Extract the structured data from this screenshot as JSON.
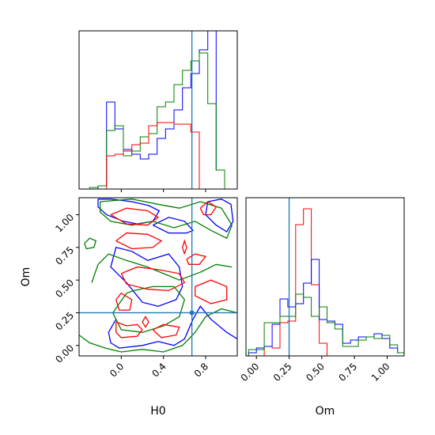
{
  "chart_data": [
    {
      "panel": "H0 marginal",
      "type": "histogram",
      "xlabel": "",
      "ylabel": "",
      "xlim": [
        -0.4,
        1.1
      ],
      "ylim": [
        0,
        1
      ],
      "y_ticks_shown": false,
      "truth_line": {
        "value": 0.67,
        "color": "#1f77b4"
      },
      "bin_edges": [
        -0.3,
        -0.22,
        -0.14,
        -0.06,
        0.02,
        0.1,
        0.18,
        0.26,
        0.34,
        0.42,
        0.5,
        0.58,
        0.66,
        0.74,
        0.82,
        0.9,
        0.98,
        1.06
      ],
      "series": [
        {
          "name": "blue",
          "color": "#0000ff",
          "counts": [
            0.0,
            0.02,
            0.55,
            0.38,
            0.25,
            0.22,
            0.19,
            0.22,
            0.32,
            0.38,
            0.5,
            0.64,
            0.73,
            0.88,
            1.0,
            0.12,
            0.0
          ]
        },
        {
          "name": "green",
          "color": "#008000",
          "counts": [
            0.01,
            0.02,
            0.37,
            0.4,
            0.21,
            0.24,
            0.33,
            0.35,
            0.52,
            0.55,
            0.66,
            0.75,
            0.81,
            0.86,
            0.54,
            0.12,
            0.0
          ]
        },
        {
          "name": "red",
          "color": "#ff0000",
          "counts": [
            0.0,
            0.0,
            0.21,
            0.22,
            0.24,
            0.28,
            0.29,
            0.4,
            0.42,
            0.42,
            0.41,
            0.41,
            0.36,
            0.0,
            0.0,
            0.0,
            0.0
          ]
        }
      ]
    },
    {
      "panel": "H0 vs Om joint",
      "type": "contour",
      "xlabel": "H0",
      "ylabel": "Om",
      "xlim": [
        -0.4,
        1.1
      ],
      "ylim": [
        -0.08,
        1.13
      ],
      "x_ticks": [
        "0.0",
        "0.4",
        "0.8"
      ],
      "y_ticks": [
        "0.00",
        "0.25",
        "0.50",
        "0.75",
        "1.00"
      ],
      "truth": {
        "H0": 0.67,
        "Om": 0.25,
        "color": "#1f77b4"
      },
      "contours": [
        {
          "color": "#0000ff",
          "paths": [
            [
              [
                -0.22,
                1.12
              ],
              [
                -0.1,
                1.12
              ],
              [
                0.1,
                1.1
              ],
              [
                0.26,
                1.07
              ],
              [
                0.36,
                1.03
              ],
              [
                0.3,
                0.95
              ],
              [
                0.15,
                0.93
              ],
              [
                0.02,
                0.95
              ],
              [
                -0.14,
                1.0
              ],
              [
                -0.22,
                1.06
              ],
              [
                -0.22,
                1.12
              ]
            ],
            [
              [
                0.3,
                0.92
              ],
              [
                0.45,
                0.98
              ],
              [
                0.6,
                0.95
              ],
              [
                0.68,
                0.88
              ],
              [
                0.62,
                0.86
              ],
              [
                0.45,
                0.86
              ],
              [
                0.3,
                0.92
              ]
            ],
            [
              [
                0.82,
                1.1
              ],
              [
                0.95,
                1.12
              ],
              [
                1.04,
                1.08
              ],
              [
                1.06,
                0.95
              ],
              [
                1.0,
                0.87
              ],
              [
                0.9,
                0.92
              ],
              [
                0.8,
                1.0
              ],
              [
                0.82,
                1.1
              ]
            ],
            [
              [
                -0.05,
                0.2
              ],
              [
                -0.12,
                0.1
              ],
              [
                -0.1,
                0.02
              ],
              [
                -0.02,
                -0.02
              ],
              [
                0.2,
                0.0
              ],
              [
                0.35,
                0.03
              ],
              [
                0.5,
                0.0
              ],
              [
                0.6,
                0.05
              ],
              [
                0.68,
                0.2
              ],
              [
                0.75,
                0.3
              ],
              [
                0.85,
                0.2
              ],
              [
                1.0,
                0.1
              ],
              [
                1.1,
                0.05
              ]
            ],
            [
              [
                0.05,
                0.48
              ],
              [
                -0.1,
                0.6
              ],
              [
                -0.05,
                0.75
              ],
              [
                0.1,
                0.72
              ],
              [
                0.25,
                0.65
              ],
              [
                0.45,
                0.7
              ],
              [
                0.55,
                0.6
              ],
              [
                0.58,
                0.45
              ],
              [
                0.52,
                0.35
              ],
              [
                0.35,
                0.3
              ],
              [
                0.2,
                0.33
              ],
              [
                0.05,
                0.48
              ]
            ]
          ]
        },
        {
          "color": "#008000",
          "paths": [
            [
              [
                -0.35,
                0.78
              ],
              [
                -0.3,
                0.82
              ],
              [
                -0.24,
                0.8
              ],
              [
                -0.26,
                0.75
              ],
              [
                -0.33,
                0.74
              ],
              [
                -0.35,
                0.78
              ]
            ],
            [
              [
                -0.2,
                1.1
              ],
              [
                0.1,
                1.12
              ],
              [
                0.35,
                1.08
              ],
              [
                0.55,
                1.05
              ],
              [
                0.75,
                1.1
              ],
              [
                0.95,
                1.05
              ],
              [
                1.05,
                0.92
              ],
              [
                1.0,
                0.82
              ],
              [
                0.85,
                0.88
              ],
              [
                0.7,
                0.95
              ],
              [
                0.5,
                0.9
              ],
              [
                0.3,
                0.95
              ],
              [
                0.1,
                0.92
              ],
              [
                -0.1,
                0.95
              ],
              [
                -0.2,
                1.02
              ],
              [
                -0.2,
                1.1
              ]
            ],
            [
              [
                -0.4,
                0.08
              ],
              [
                -0.3,
                0.02
              ],
              [
                -0.15,
                -0.02
              ],
              [
                0.0,
                -0.05
              ],
              [
                0.2,
                -0.03
              ],
              [
                0.4,
                -0.05
              ],
              [
                0.58,
                0.0
              ],
              [
                0.7,
                0.1
              ],
              [
                0.8,
                0.22
              ],
              [
                0.95,
                0.28
              ],
              [
                1.1,
                0.25
              ]
            ],
            [
              [
                -0.28,
                0.48
              ],
              [
                -0.22,
                0.62
              ],
              [
                -0.12,
                0.7
              ],
              [
                0.05,
                0.65
              ],
              [
                0.25,
                0.6
              ],
              [
                0.4,
                0.55
              ],
              [
                0.55,
                0.5
              ],
              [
                0.75,
                0.56
              ],
              [
                0.9,
                0.62
              ],
              [
                1.05,
                0.6
              ]
            ],
            [
              [
                0.05,
                0.4
              ],
              [
                -0.08,
                0.25
              ],
              [
                0.0,
                0.12
              ],
              [
                0.2,
                0.1
              ],
              [
                0.4,
                0.15
              ],
              [
                0.55,
                0.22
              ],
              [
                0.6,
                0.35
              ],
              [
                0.5,
                0.45
              ],
              [
                0.3,
                0.45
              ],
              [
                0.12,
                0.42
              ],
              [
                0.05,
                0.4
              ]
            ]
          ]
        },
        {
          "color": "#ff0000",
          "paths": [
            [
              [
                -0.1,
                1.0
              ],
              [
                0.05,
                1.05
              ],
              [
                0.25,
                1.03
              ],
              [
                0.35,
                0.98
              ],
              [
                0.25,
                0.92
              ],
              [
                0.05,
                0.93
              ],
              [
                -0.1,
                1.0
              ]
            ],
            [
              [
                -0.05,
                0.8
              ],
              [
                0.05,
                0.86
              ],
              [
                0.25,
                0.85
              ],
              [
                0.38,
                0.8
              ],
              [
                0.3,
                0.75
              ],
              [
                0.1,
                0.74
              ],
              [
                -0.05,
                0.8
              ]
            ],
            [
              [
                0.75,
                1.05
              ],
              [
                0.82,
                1.1
              ],
              [
                0.9,
                1.06
              ],
              [
                0.85,
                1.0
              ],
              [
                0.78,
                1.0
              ],
              [
                0.75,
                1.05
              ]
            ],
            [
              [
                0.62,
                0.66
              ],
              [
                0.7,
                0.7
              ],
              [
                0.8,
                0.68
              ],
              [
                0.74,
                0.62
              ],
              [
                0.64,
                0.62
              ],
              [
                0.62,
                0.66
              ]
            ],
            [
              [
                0.6,
                0.7
              ],
              [
                0.62,
                0.75
              ],
              [
                0.6,
                0.8
              ],
              [
                0.58,
                0.75
              ],
              [
                0.6,
                0.7
              ]
            ],
            [
              [
                0.0,
                0.55
              ],
              [
                0.15,
                0.6
              ],
              [
                0.35,
                0.58
              ],
              [
                0.55,
                0.55
              ],
              [
                0.6,
                0.48
              ],
              [
                0.45,
                0.42
              ],
              [
                0.25,
                0.43
              ],
              [
                0.05,
                0.47
              ],
              [
                0.0,
                0.55
              ]
            ],
            [
              [
                -0.05,
                0.35
              ],
              [
                0.0,
                0.4
              ],
              [
                0.1,
                0.35
              ],
              [
                0.08,
                0.27
              ],
              [
                -0.02,
                0.27
              ],
              [
                -0.05,
                0.35
              ]
            ],
            [
              [
                0.7,
                0.45
              ],
              [
                0.85,
                0.5
              ],
              [
                1.0,
                0.45
              ],
              [
                1.0,
                0.35
              ],
              [
                0.85,
                0.32
              ],
              [
                0.7,
                0.38
              ],
              [
                0.7,
                0.45
              ]
            ],
            [
              [
                -0.05,
                0.18
              ],
              [
                0.05,
                0.15
              ],
              [
                0.15,
                0.16
              ],
              [
                0.2,
                0.12
              ],
              [
                0.15,
                0.07
              ],
              [
                0.0,
                0.06
              ],
              [
                -0.05,
                0.1
              ],
              [
                -0.05,
                0.18
              ]
            ],
            [
              [
                0.3,
                0.12
              ],
              [
                0.4,
                0.16
              ],
              [
                0.55,
                0.14
              ],
              [
                0.52,
                0.08
              ],
              [
                0.38,
                0.06
              ],
              [
                0.3,
                0.12
              ]
            ],
            [
              [
                0.2,
                0.18
              ],
              [
                0.23,
                0.22
              ],
              [
                0.26,
                0.18
              ],
              [
                0.23,
                0.14
              ],
              [
                0.2,
                0.18
              ]
            ]
          ]
        }
      ]
    },
    {
      "panel": "Om marginal",
      "type": "histogram",
      "xlabel": "Om",
      "ylabel": "",
      "xlim": [
        -0.08,
        1.13
      ],
      "ylim": [
        0,
        1
      ],
      "x_ticks": [
        "0.00",
        "0.25",
        "0.50",
        "0.75",
        "1.00"
      ],
      "y_ticks_shown": false,
      "truth_line": {
        "value": 0.25,
        "color": "#1f77b4"
      },
      "bin_edges": [
        -0.06,
        0.0,
        0.06,
        0.12,
        0.18,
        0.24,
        0.3,
        0.36,
        0.42,
        0.48,
        0.54,
        0.6,
        0.66,
        0.72,
        0.78,
        0.84,
        0.9,
        0.96,
        1.02,
        1.08,
        1.13
      ],
      "series": [
        {
          "name": "red",
          "color": "#ff0000",
          "counts": [
            0.0,
            0.0,
            0.06,
            0.05,
            0.21,
            0.22,
            0.83,
            0.93,
            0.45,
            0.08,
            0.0,
            0.0,
            0.0,
            0.0,
            0.0,
            0.0,
            0.0,
            0.0,
            0.0,
            0.0
          ]
        },
        {
          "name": "blue",
          "color": "#0000ff",
          "counts": [
            0.02,
            0.05,
            0.06,
            0.2,
            0.36,
            0.31,
            0.33,
            0.46,
            0.61,
            0.23,
            0.22,
            0.2,
            0.08,
            0.1,
            0.12,
            0.12,
            0.14,
            0.11,
            0.05,
            0.02
          ]
        },
        {
          "name": "green",
          "color": "#008000",
          "counts": [
            0.04,
            0.04,
            0.21,
            0.21,
            0.25,
            0.25,
            0.39,
            0.37,
            0.25,
            0.31,
            0.21,
            0.17,
            0.06,
            0.06,
            0.1,
            0.12,
            0.11,
            0.13,
            0.07,
            0.02
          ]
        }
      ]
    }
  ]
}
